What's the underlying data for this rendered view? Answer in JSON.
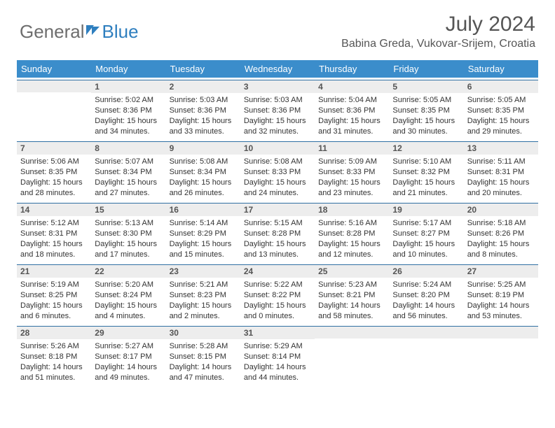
{
  "logo": {
    "word1": "General",
    "word2": "Blue"
  },
  "title": "July 2024",
  "location": "Babina Greda, Vukovar-Srijem, Croatia",
  "day_headers": [
    "Sunday",
    "Monday",
    "Tuesday",
    "Wednesday",
    "Thursday",
    "Friday",
    "Saturday"
  ],
  "colors": {
    "header_bg": "#3b8dcb",
    "header_text": "#ffffff",
    "daybar_bg": "#ededed",
    "border": "#2f6fa3",
    "text": "#333333",
    "logo_gray": "#6e6e6e",
    "logo_blue": "#2f7fbf"
  },
  "first_weekday_index": 1,
  "days": {
    "1": {
      "rise": "5:02 AM",
      "set": "8:36 PM",
      "len": "15 hours and 34 minutes."
    },
    "2": {
      "rise": "5:03 AM",
      "set": "8:36 PM",
      "len": "15 hours and 33 minutes."
    },
    "3": {
      "rise": "5:03 AM",
      "set": "8:36 PM",
      "len": "15 hours and 32 minutes."
    },
    "4": {
      "rise": "5:04 AM",
      "set": "8:36 PM",
      "len": "15 hours and 31 minutes."
    },
    "5": {
      "rise": "5:05 AM",
      "set": "8:35 PM",
      "len": "15 hours and 30 minutes."
    },
    "6": {
      "rise": "5:05 AM",
      "set": "8:35 PM",
      "len": "15 hours and 29 minutes."
    },
    "7": {
      "rise": "5:06 AM",
      "set": "8:35 PM",
      "len": "15 hours and 28 minutes."
    },
    "8": {
      "rise": "5:07 AM",
      "set": "8:34 PM",
      "len": "15 hours and 27 minutes."
    },
    "9": {
      "rise": "5:08 AM",
      "set": "8:34 PM",
      "len": "15 hours and 26 minutes."
    },
    "10": {
      "rise": "5:08 AM",
      "set": "8:33 PM",
      "len": "15 hours and 24 minutes."
    },
    "11": {
      "rise": "5:09 AM",
      "set": "8:33 PM",
      "len": "15 hours and 23 minutes."
    },
    "12": {
      "rise": "5:10 AM",
      "set": "8:32 PM",
      "len": "15 hours and 21 minutes."
    },
    "13": {
      "rise": "5:11 AM",
      "set": "8:31 PM",
      "len": "15 hours and 20 minutes."
    },
    "14": {
      "rise": "5:12 AM",
      "set": "8:31 PM",
      "len": "15 hours and 18 minutes."
    },
    "15": {
      "rise": "5:13 AM",
      "set": "8:30 PM",
      "len": "15 hours and 17 minutes."
    },
    "16": {
      "rise": "5:14 AM",
      "set": "8:29 PM",
      "len": "15 hours and 15 minutes."
    },
    "17": {
      "rise": "5:15 AM",
      "set": "8:28 PM",
      "len": "15 hours and 13 minutes."
    },
    "18": {
      "rise": "5:16 AM",
      "set": "8:28 PM",
      "len": "15 hours and 12 minutes."
    },
    "19": {
      "rise": "5:17 AM",
      "set": "8:27 PM",
      "len": "15 hours and 10 minutes."
    },
    "20": {
      "rise": "5:18 AM",
      "set": "8:26 PM",
      "len": "15 hours and 8 minutes."
    },
    "21": {
      "rise": "5:19 AM",
      "set": "8:25 PM",
      "len": "15 hours and 6 minutes."
    },
    "22": {
      "rise": "5:20 AM",
      "set": "8:24 PM",
      "len": "15 hours and 4 minutes."
    },
    "23": {
      "rise": "5:21 AM",
      "set": "8:23 PM",
      "len": "15 hours and 2 minutes."
    },
    "24": {
      "rise": "5:22 AM",
      "set": "8:22 PM",
      "len": "15 hours and 0 minutes."
    },
    "25": {
      "rise": "5:23 AM",
      "set": "8:21 PM",
      "len": "14 hours and 58 minutes."
    },
    "26": {
      "rise": "5:24 AM",
      "set": "8:20 PM",
      "len": "14 hours and 56 minutes."
    },
    "27": {
      "rise": "5:25 AM",
      "set": "8:19 PM",
      "len": "14 hours and 53 minutes."
    },
    "28": {
      "rise": "5:26 AM",
      "set": "8:18 PM",
      "len": "14 hours and 51 minutes."
    },
    "29": {
      "rise": "5:27 AM",
      "set": "8:17 PM",
      "len": "14 hours and 49 minutes."
    },
    "30": {
      "rise": "5:28 AM",
      "set": "8:15 PM",
      "len": "14 hours and 47 minutes."
    },
    "31": {
      "rise": "5:29 AM",
      "set": "8:14 PM",
      "len": "14 hours and 44 minutes."
    }
  },
  "labels": {
    "sunrise": "Sunrise:",
    "sunset": "Sunset:",
    "daylight": "Daylight:"
  }
}
